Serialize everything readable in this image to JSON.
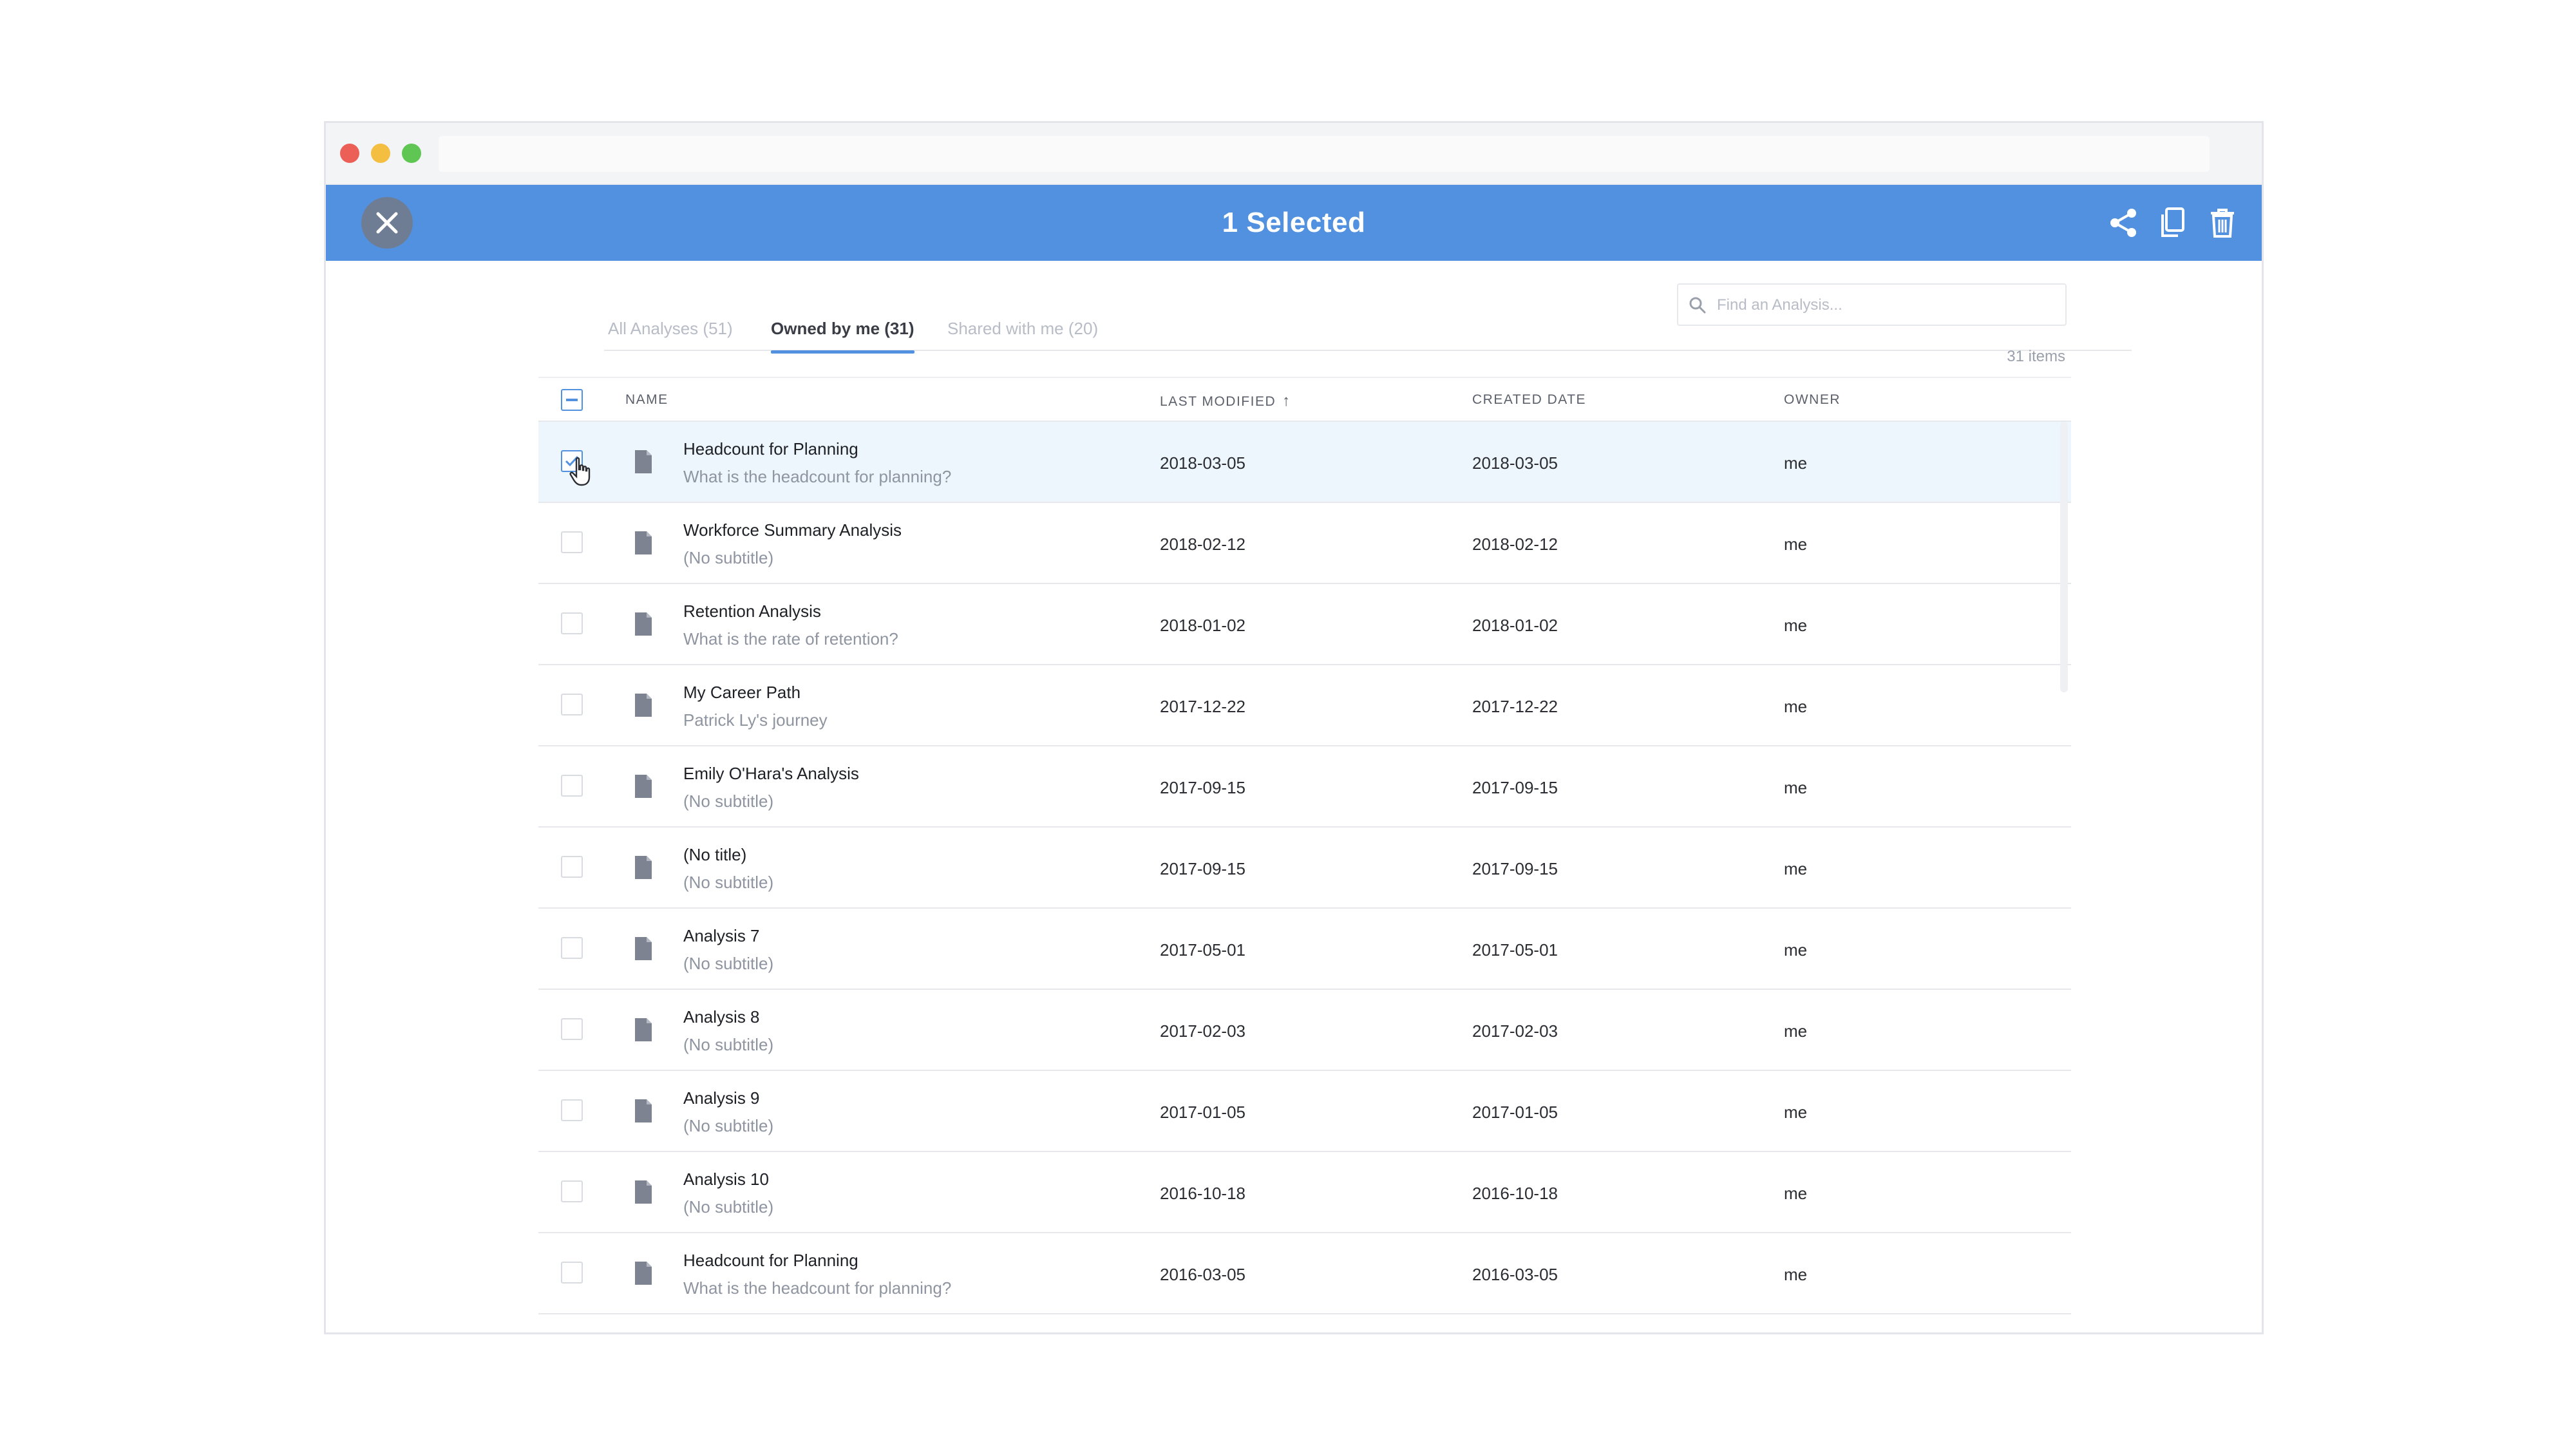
{
  "window": {
    "address_bar_value": ""
  },
  "action_bar": {
    "title": "1 Selected",
    "accent_color": "#5191e0",
    "icons": [
      "close-icon",
      "share-icon",
      "copy-icon",
      "trash-icon"
    ]
  },
  "tabs": [
    {
      "label": "All Analyses (51)",
      "active": false
    },
    {
      "label": "Owned by me (31)",
      "active": true
    },
    {
      "label": "Shared with me (20)",
      "active": false
    }
  ],
  "search": {
    "placeholder": "Find an Analysis...",
    "value": ""
  },
  "item_count": "31 items",
  "table": {
    "columns": {
      "name": "NAME",
      "last_modified": "LAST MODIFIED",
      "created_date": "CREATED DATE",
      "owner": "OWNER"
    },
    "sort": {
      "column": "last_modified",
      "direction": "up-arrow"
    },
    "rows": [
      {
        "title": "Headcount for Planning",
        "subtitle": "What is the headcount for planning?",
        "last_modified": "2018-03-05",
        "created": "2018-03-05",
        "owner": "me",
        "selected": true
      },
      {
        "title": "Workforce Summary Analysis",
        "subtitle": "(No subtitle)",
        "last_modified": "2018-02-12",
        "created": "2018-02-12",
        "owner": "me",
        "selected": false
      },
      {
        "title": "Retention Analysis",
        "subtitle": "What is the rate of retention?",
        "last_modified": "2018-01-02",
        "created": "2018-01-02",
        "owner": "me",
        "selected": false
      },
      {
        "title": "My Career Path",
        "subtitle": "Patrick Ly's journey",
        "last_modified": "2017-12-22",
        "created": "2017-12-22",
        "owner": "me",
        "selected": false
      },
      {
        "title": "Emily O'Hara's Analysis",
        "subtitle": "(No subtitle)",
        "last_modified": "2017-09-15",
        "created": "2017-09-15",
        "owner": "me",
        "selected": false
      },
      {
        "title": "(No title)",
        "subtitle": "(No subtitle)",
        "last_modified": "2017-09-15",
        "created": "2017-09-15",
        "owner": "me",
        "selected": false
      },
      {
        "title": "Analysis 7",
        "subtitle": "(No subtitle)",
        "last_modified": "2017-05-01",
        "created": "2017-05-01",
        "owner": "me",
        "selected": false
      },
      {
        "title": "Analysis 8",
        "subtitle": "(No subtitle)",
        "last_modified": "2017-02-03",
        "created": "2017-02-03",
        "owner": "me",
        "selected": false
      },
      {
        "title": "Analysis 9",
        "subtitle": "(No subtitle)",
        "last_modified": "2017-01-05",
        "created": "2017-01-05",
        "owner": "me",
        "selected": false
      },
      {
        "title": "Analysis 10",
        "subtitle": "(No subtitle)",
        "last_modified": "2016-10-18",
        "created": "2016-10-18",
        "owner": "me",
        "selected": false
      },
      {
        "title": "Headcount for Planning",
        "subtitle": "What is the headcount for planning?",
        "last_modified": "2016-03-05",
        "created": "2016-03-05",
        "owner": "me",
        "selected": false
      }
    ]
  }
}
